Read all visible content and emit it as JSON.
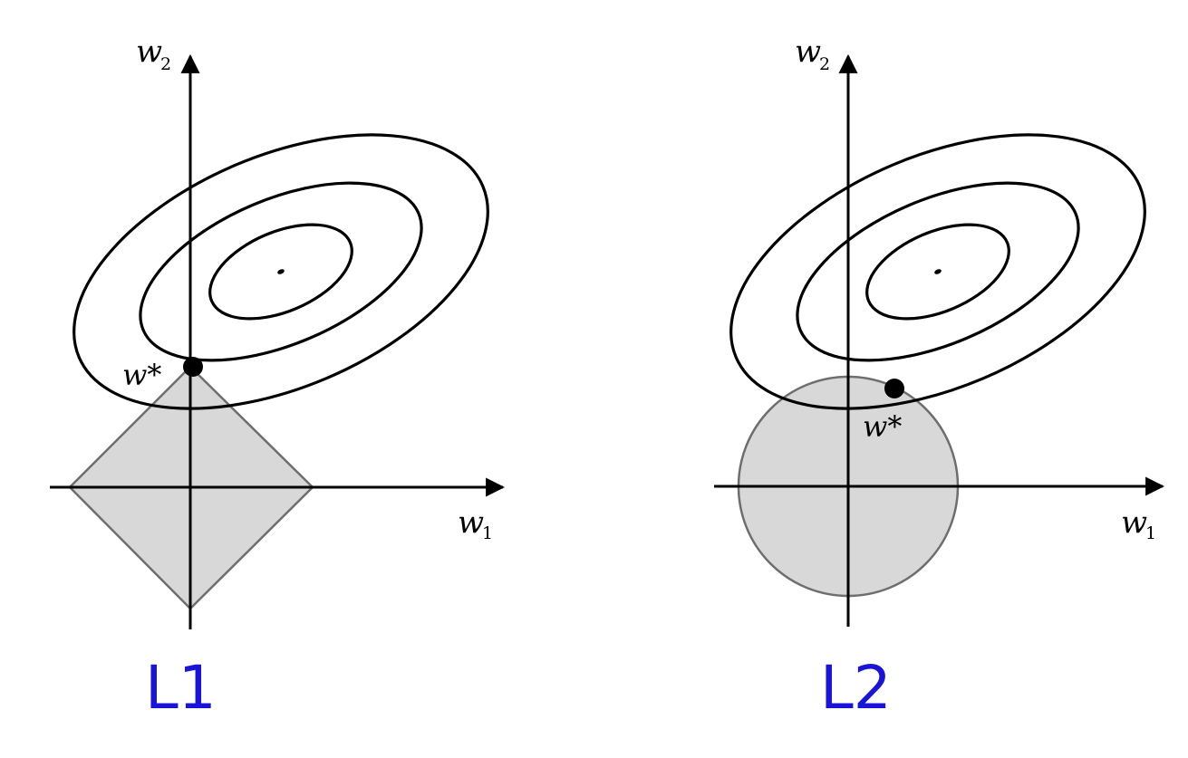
{
  "panels": [
    {
      "label": "L1",
      "axis_x": {
        "name": "w",
        "sub": "1"
      },
      "axis_y": {
        "name": "w",
        "sub": "2"
      },
      "solution_label": "w*",
      "constraint_shape": "diamond",
      "label_color": "#1a14d8"
    },
    {
      "label": "L2",
      "axis_x": {
        "name": "w",
        "sub": "1"
      },
      "axis_y": {
        "name": "w",
        "sub": "2"
      },
      "solution_label": "w*",
      "constraint_shape": "circle",
      "label_color": "#1a14d8"
    }
  ],
  "colors": {
    "region_fill": "#d8d8d8",
    "region_stroke": "#6e6e6e",
    "contour": "#000000"
  }
}
